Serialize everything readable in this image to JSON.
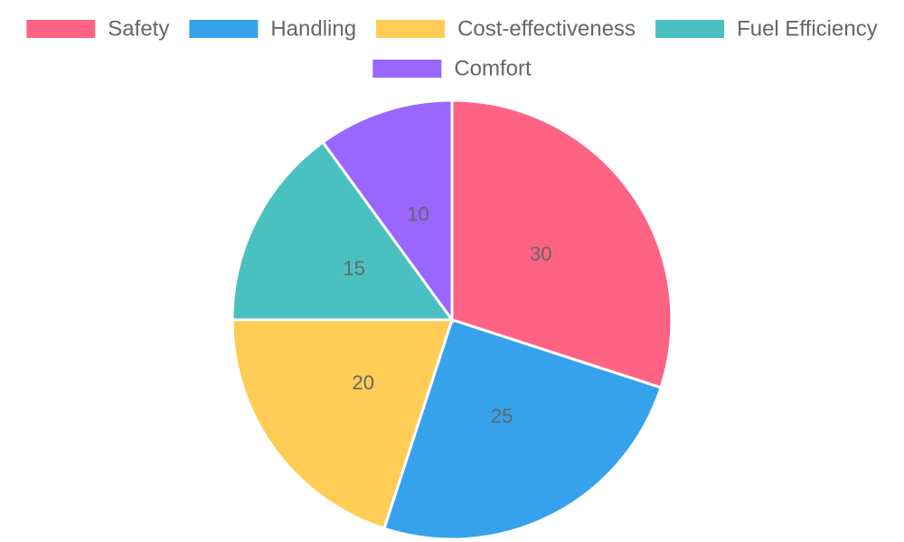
{
  "chart_data": {
    "type": "pie",
    "categories": [
      "Safety",
      "Handling",
      "Cost-effectiveness",
      "Fuel Efficiency",
      "Comfort"
    ],
    "values": [
      30,
      25,
      20,
      15,
      10
    ],
    "colors": [
      "#ff6384",
      "#36a2eb",
      "#ffcd56",
      "#4bc0c0",
      "#9966ff"
    ],
    "legend": "top"
  }
}
